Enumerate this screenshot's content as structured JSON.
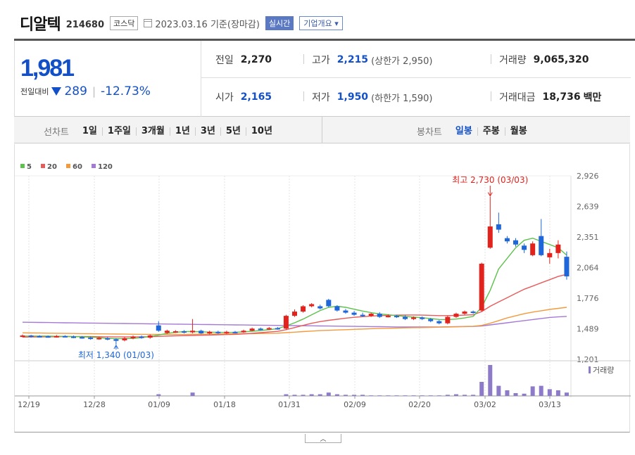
{
  "header": {
    "name": "디알텍",
    "code": "214680",
    "market": "코스닥",
    "date_text": "2023.03.16 기준(장마감)",
    "realtime": "실시간",
    "company_info": "기업개요"
  },
  "price": {
    "current": "1,981",
    "change_label": "전일대비",
    "change_value": "289",
    "change_pct": "-12.73%"
  },
  "stats": {
    "prev_label": "전일",
    "prev": "2,270",
    "high_label": "고가",
    "high": "2,215",
    "upper_limit": "(상한가 2,950)",
    "volume_label": "거래량",
    "volume": "9,065,320",
    "open_label": "시가",
    "open": "2,165",
    "low_label": "저가",
    "low": "1,950",
    "lower_limit": "(하한가 1,590)",
    "amount_label": "거래대금",
    "amount": "18,736",
    "amount_unit": "백만"
  },
  "toolbar": {
    "line_label": "선차트",
    "line_periods": [
      "1일",
      "1주일",
      "3개월",
      "1년",
      "3년",
      "5년",
      "10년"
    ],
    "candle_label": "봉차트",
    "candle_periods": [
      "일봉",
      "주봉",
      "월봉"
    ],
    "candle_active": 0
  },
  "colors": {
    "up": "#e2221c",
    "down": "#1f66d8",
    "ma5": "#5cc24b",
    "ma20": "#e85b5b",
    "ma60": "#f39a3d",
    "ma120": "#a47ad6",
    "volume": "#8d7bc9"
  },
  "chart_data": {
    "type": "candlestick",
    "legend": [
      "5",
      "20",
      "60",
      "120"
    ],
    "y_ticks": [
      2926,
      2639,
      2351,
      2064,
      1776,
      1489,
      1201
    ],
    "ylim": [
      1201,
      2926
    ],
    "x_ticks": [
      "12/19",
      "12/28",
      "01/09",
      "01/18",
      "01/31",
      "02/09",
      "02/20",
      "03/02",
      "03/13"
    ],
    "high_annotation": "최고 2,730 (03/03)",
    "low_annotation": "최저 1,340 (01/03)",
    "volume_label": "거래량",
    "candles": [
      {
        "o": 1420,
        "c": 1425,
        "h": 1435,
        "l": 1410
      },
      {
        "o": 1425,
        "c": 1415,
        "h": 1432,
        "l": 1405
      },
      {
        "o": 1420,
        "c": 1418,
        "h": 1428,
        "l": 1410
      },
      {
        "o": 1418,
        "c": 1412,
        "h": 1425,
        "l": 1405
      },
      {
        "o": 1412,
        "c": 1420,
        "h": 1430,
        "l": 1405
      },
      {
        "o": 1420,
        "c": 1415,
        "h": 1428,
        "l": 1408
      },
      {
        "o": 1415,
        "c": 1410,
        "h": 1425,
        "l": 1400
      },
      {
        "o": 1410,
        "c": 1405,
        "h": 1420,
        "l": 1395
      },
      {
        "o": 1405,
        "c": 1400,
        "h": 1415,
        "l": 1385
      },
      {
        "o": 1400,
        "c": 1402,
        "h": 1412,
        "l": 1385
      },
      {
        "o": 1400,
        "c": 1390,
        "h": 1410,
        "l": 1380
      },
      {
        "o": 1390,
        "c": 1375,
        "h": 1400,
        "l": 1340
      },
      {
        "o": 1380,
        "c": 1400,
        "h": 1410,
        "l": 1370
      },
      {
        "o": 1400,
        "c": 1415,
        "h": 1425,
        "l": 1390
      },
      {
        "o": 1415,
        "c": 1405,
        "h": 1425,
        "l": 1395
      },
      {
        "o": 1405,
        "c": 1425,
        "h": 1435,
        "l": 1395
      },
      {
        "o": 1520,
        "c": 1470,
        "h": 1560,
        "l": 1460
      },
      {
        "o": 1450,
        "c": 1470,
        "h": 1480,
        "l": 1440
      },
      {
        "o": 1460,
        "c": 1465,
        "h": 1475,
        "l": 1450
      },
      {
        "o": 1465,
        "c": 1455,
        "h": 1475,
        "l": 1445
      },
      {
        "o": 1455,
        "c": 1470,
        "h": 1580,
        "l": 1445
      },
      {
        "o": 1470,
        "c": 1445,
        "h": 1480,
        "l": 1440
      },
      {
        "o": 1445,
        "c": 1460,
        "h": 1470,
        "l": 1435
      },
      {
        "o": 1460,
        "c": 1450,
        "h": 1470,
        "l": 1440
      },
      {
        "o": 1450,
        "c": 1460,
        "h": 1470,
        "l": 1440
      },
      {
        "o": 1460,
        "c": 1455,
        "h": 1468,
        "l": 1445
      },
      {
        "o": 1455,
        "c": 1470,
        "h": 1480,
        "l": 1450
      },
      {
        "o": 1470,
        "c": 1490,
        "h": 1500,
        "l": 1465
      },
      {
        "o": 1490,
        "c": 1485,
        "h": 1500,
        "l": 1475
      },
      {
        "o": 1485,
        "c": 1495,
        "h": 1505,
        "l": 1478
      },
      {
        "o": 1495,
        "c": 1490,
        "h": 1505,
        "l": 1480
      },
      {
        "o": 1490,
        "c": 1610,
        "h": 1620,
        "l": 1480
      },
      {
        "o": 1610,
        "c": 1650,
        "h": 1670,
        "l": 1600
      },
      {
        "o": 1650,
        "c": 1700,
        "h": 1710,
        "l": 1640
      },
      {
        "o": 1700,
        "c": 1720,
        "h": 1730,
        "l": 1690
      },
      {
        "o": 1700,
        "c": 1680,
        "h": 1715,
        "l": 1670
      },
      {
        "o": 1760,
        "c": 1700,
        "h": 1770,
        "l": 1690
      },
      {
        "o": 1700,
        "c": 1660,
        "h": 1710,
        "l": 1650
      },
      {
        "o": 1660,
        "c": 1640,
        "h": 1675,
        "l": 1630
      },
      {
        "o": 1640,
        "c": 1620,
        "h": 1655,
        "l": 1610
      },
      {
        "o": 1620,
        "c": 1610,
        "h": 1640,
        "l": 1600
      },
      {
        "o": 1610,
        "c": 1630,
        "h": 1640,
        "l": 1600
      },
      {
        "o": 1630,
        "c": 1600,
        "h": 1645,
        "l": 1590
      },
      {
        "o": 1600,
        "c": 1610,
        "h": 1625,
        "l": 1595
      },
      {
        "o": 1610,
        "c": 1600,
        "h": 1620,
        "l": 1590
      },
      {
        "o": 1600,
        "c": 1580,
        "h": 1615,
        "l": 1570
      },
      {
        "o": 1580,
        "c": 1595,
        "h": 1605,
        "l": 1570
      },
      {
        "o": 1595,
        "c": 1580,
        "h": 1605,
        "l": 1570
      },
      {
        "o": 1580,
        "c": 1560,
        "h": 1590,
        "l": 1550
      },
      {
        "o": 1560,
        "c": 1540,
        "h": 1570,
        "l": 1530
      },
      {
        "o": 1540,
        "c": 1600,
        "h": 1610,
        "l": 1530
      },
      {
        "o": 1600,
        "c": 1630,
        "h": 1640,
        "l": 1590
      },
      {
        "o": 1630,
        "c": 1650,
        "h": 1660,
        "l": 1620
      },
      {
        "o": 1650,
        "c": 1640,
        "h": 1660,
        "l": 1630
      },
      {
        "o": 1660,
        "c": 2100,
        "h": 2110,
        "l": 1650
      },
      {
        "o": 2250,
        "c": 2450,
        "h": 2730,
        "l": 2240
      },
      {
        "o": 2470,
        "c": 2420,
        "h": 2580,
        "l": 2390
      },
      {
        "o": 2340,
        "c": 2310,
        "h": 2360,
        "l": 2290
      },
      {
        "o": 2320,
        "c": 2280,
        "h": 2340,
        "l": 2260
      },
      {
        "o": 2270,
        "c": 2230,
        "h": 2290,
        "l": 2200
      },
      {
        "o": 2180,
        "c": 2290,
        "h": 2310,
        "l": 2170
      },
      {
        "o": 2360,
        "c": 2180,
        "h": 2520,
        "l": 2170
      },
      {
        "o": 2160,
        "c": 2200,
        "h": 2240,
        "l": 2100
      },
      {
        "o": 2200,
        "c": 2280,
        "h": 2320,
        "l": 2150
      },
      {
        "o": 2165,
        "c": 1981,
        "h": 2215,
        "l": 1950
      }
    ],
    "ma5": [
      1420,
      1420,
      1420,
      1419,
      1418,
      1417,
      1415,
      1413,
      1410,
      1405,
      1398,
      1395,
      1395,
      1398,
      1405,
      1415,
      1430,
      1445,
      1455,
      1462,
      1462,
      1460,
      1457,
      1455,
      1454,
      1455,
      1460,
      1465,
      1472,
      1480,
      1490,
      1515,
      1545,
      1580,
      1620,
      1660,
      1690,
      1700,
      1690,
      1672,
      1655,
      1640,
      1628,
      1620,
      1612,
      1605,
      1598,
      1592,
      1585,
      1576,
      1575,
      1580,
      1590,
      1605,
      1690,
      1850,
      2050,
      2150,
      2250,
      2320,
      2340,
      2310,
      2280,
      2250,
      2180
    ],
    "ma20": [
      1410,
      1411,
      1412,
      1413,
      1414,
      1415,
      1415,
      1415,
      1415,
      1414,
      1413,
      1412,
      1412,
      1412,
      1413,
      1414,
      1417,
      1420,
      1422,
      1424,
      1426,
      1428,
      1430,
      1432,
      1434,
      1436,
      1440,
      1446,
      1452,
      1458,
      1464,
      1480,
      1500,
      1520,
      1540,
      1556,
      1568,
      1578,
      1588,
      1596,
      1602,
      1608,
      1612,
      1615,
      1617,
      1618,
      1618,
      1617,
      1615,
      1612,
      1612,
      1614,
      1617,
      1620,
      1650,
      1700,
      1740,
      1780,
      1820,
      1860,
      1890,
      1920,
      1950,
      1980,
      2000
    ],
    "ma60": [
      1450,
      1449,
      1448,
      1447,
      1446,
      1445,
      1444,
      1443,
      1442,
      1441,
      1440,
      1439,
      1438,
      1437,
      1436,
      1435,
      1435,
      1435,
      1435,
      1435,
      1436,
      1437,
      1438,
      1439,
      1440,
      1441,
      1442,
      1443,
      1444,
      1445,
      1447,
      1452,
      1457,
      1462,
      1467,
      1471,
      1474,
      1477,
      1480,
      1483,
      1486,
      1489,
      1491,
      1493,
      1495,
      1497,
      1499,
      1500,
      1502,
      1504,
      1505,
      1507,
      1510,
      1512,
      1520,
      1540,
      1565,
      1590,
      1610,
      1630,
      1645,
      1658,
      1670,
      1680,
      1690
    ],
    "ma120": [
      1550,
      1549,
      1548,
      1547,
      1546,
      1545,
      1544,
      1543,
      1542,
      1541,
      1540,
      1539,
      1538,
      1537,
      1536,
      1535,
      1534,
      1533,
      1532,
      1531,
      1530,
      1529,
      1528,
      1527,
      1526,
      1525,
      1524,
      1523,
      1522,
      1521,
      1520,
      1519,
      1518,
      1517,
      1516,
      1515,
      1514,
      1513,
      1512,
      1511,
      1510,
      1509,
      1508,
      1507,
      1506,
      1506,
      1506,
      1506,
      1506,
      1506,
      1507,
      1508,
      1509,
      1510,
      1515,
      1525,
      1535,
      1545,
      1555,
      1565,
      1575,
      1585,
      1595,
      1600,
      1605
    ],
    "volume": [
      0,
      0,
      0,
      0,
      0,
      0,
      0,
      0,
      0,
      0,
      0,
      0,
      0,
      0,
      0,
      0,
      3,
      0,
      0,
      0,
      6,
      0,
      0,
      0,
      0,
      0,
      0,
      0,
      0,
      0,
      0,
      3,
      2,
      2,
      3,
      3,
      6,
      3,
      2,
      2,
      2,
      1,
      1,
      1,
      1,
      1,
      1,
      1,
      1,
      1,
      2,
      3,
      2,
      2,
      25,
      55,
      18,
      10,
      5,
      4,
      17,
      18,
      12,
      10,
      6
    ]
  }
}
